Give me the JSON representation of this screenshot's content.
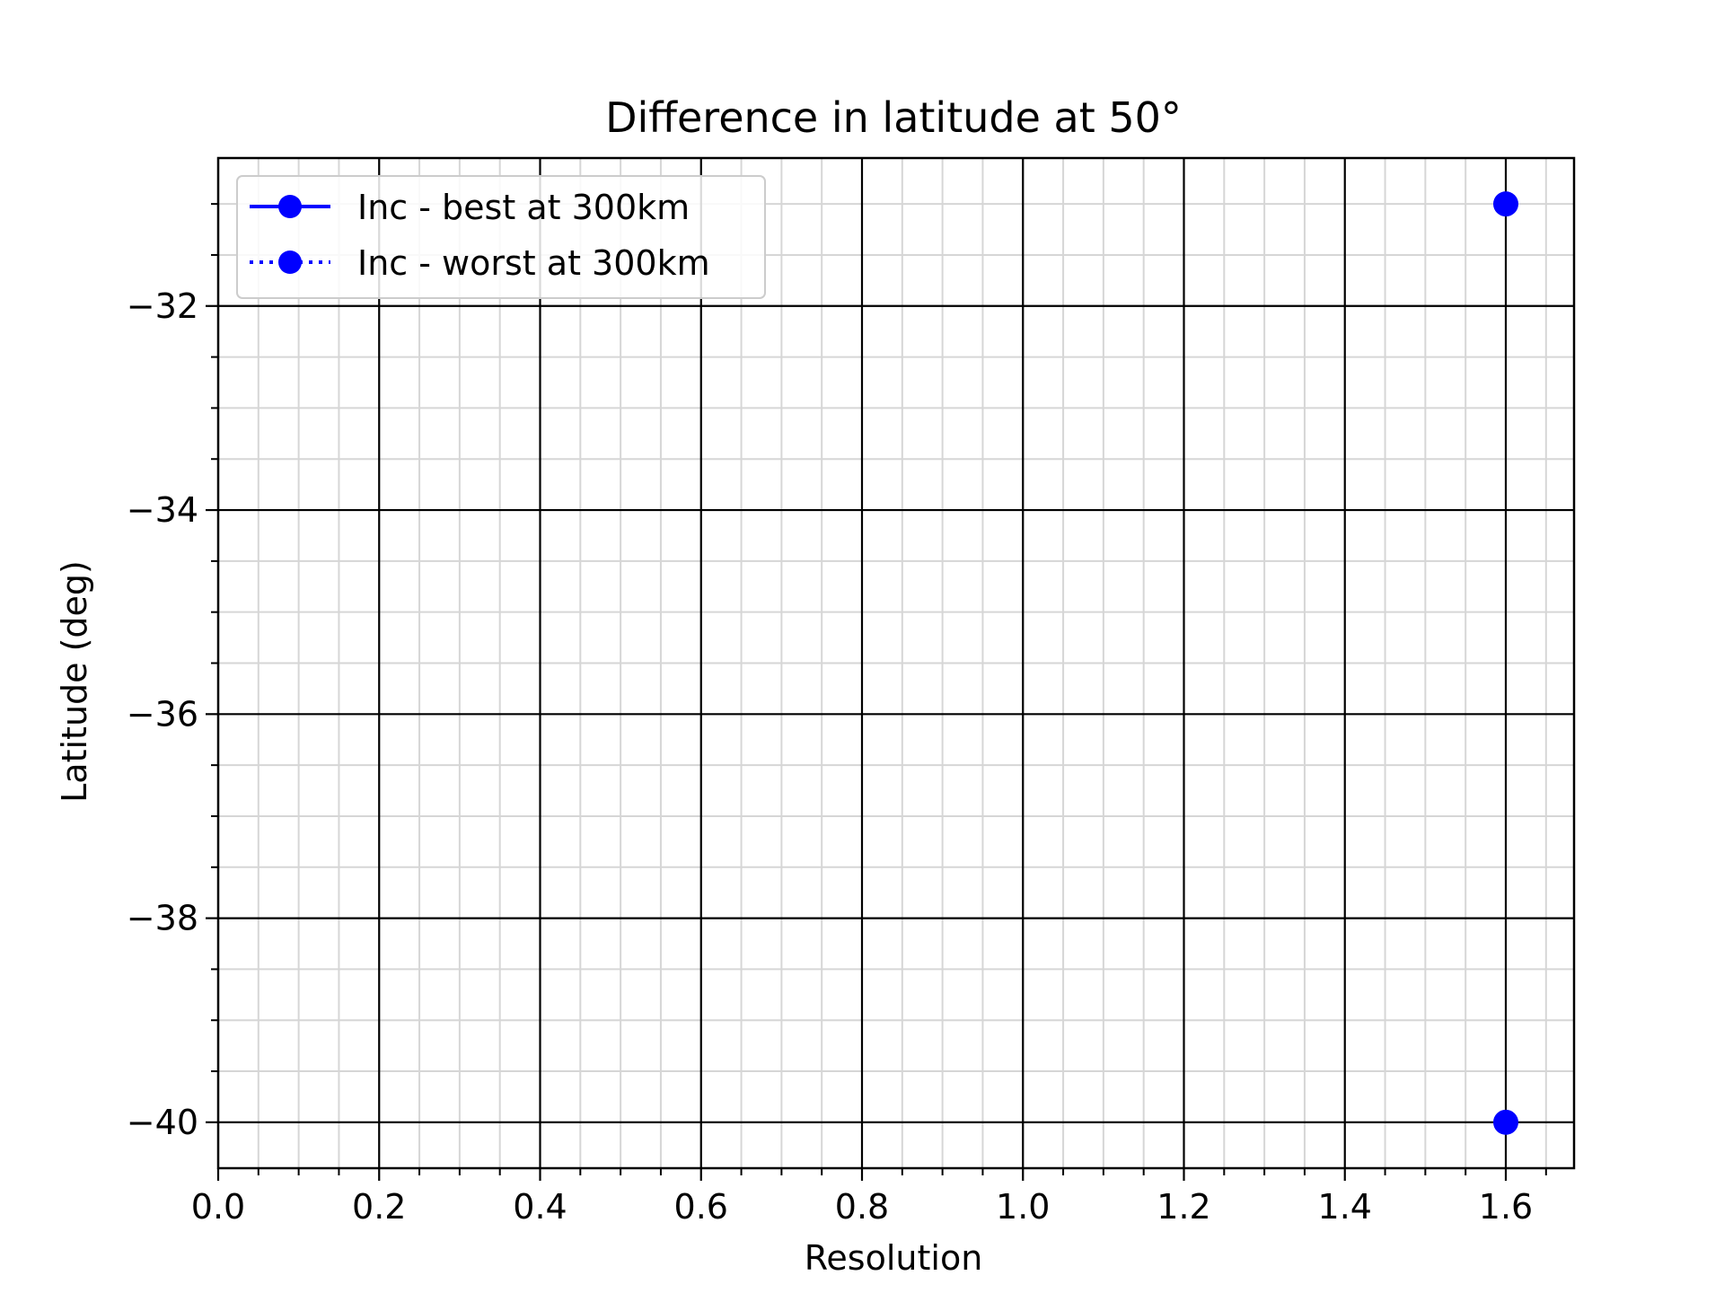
{
  "chart_data": {
    "type": "scatter",
    "title": "Difference in latitude at 50°",
    "xlabel": "Resolution",
    "ylabel": "Latitude (deg)",
    "xlim": [
      0.0,
      1.6848
    ],
    "ylim": [
      -40.45,
      -30.55
    ],
    "xticks": [
      0.0,
      0.2,
      0.4,
      0.6,
      0.8,
      1.0,
      1.2,
      1.4,
      1.6
    ],
    "xtick_labels": [
      "0.0",
      "0.2",
      "0.4",
      "0.6",
      "0.8",
      "1.0",
      "1.2",
      "1.4",
      "1.6"
    ],
    "yticks": [
      -32,
      -34,
      -36,
      -38,
      -40
    ],
    "ytick_labels": [
      "−32",
      "−34",
      "−36",
      "−38",
      "−40"
    ],
    "x_minor_step": 0.05,
    "y_minor_step": 0.5,
    "grid": true,
    "legend_position": "upper-left",
    "series": [
      {
        "name": "Inc - best at 300km",
        "color": "#0000ff",
        "line_style": "solid",
        "marker": "circle",
        "x": [
          1.6
        ],
        "y": [
          -31.0
        ]
      },
      {
        "name": "Inc - worst at 300km",
        "color": "#0000ff",
        "line_style": "dotted",
        "marker": "circle",
        "x": [
          1.6
        ],
        "y": [
          -40.0
        ]
      }
    ]
  }
}
